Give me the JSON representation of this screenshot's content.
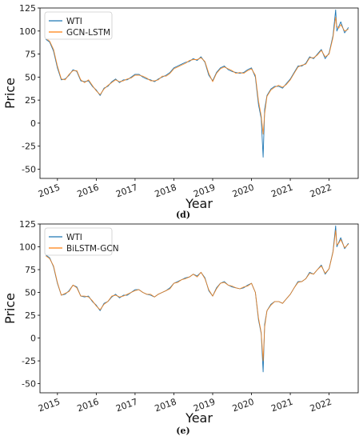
{
  "chart_data": [
    {
      "type": "line",
      "caption": "(d)",
      "xlabel": "Year",
      "ylabel": "Price",
      "ylim": [
        -60,
        125
      ],
      "xlim": [
        2014.55,
        2022.75
      ],
      "y_ticks": [
        125,
        100,
        75,
        50,
        25,
        0,
        -25,
        -50
      ],
      "x_ticks": [
        "2015",
        "2016",
        "2017",
        "2018",
        "2019",
        "2020",
        "2021",
        "2022"
      ],
      "legend_position": "top-left",
      "grid": false,
      "series": [
        {
          "name": "WTI",
          "color": "#1f77b4"
        },
        {
          "name": "GCN-LSTM",
          "color": "#ff7f0e"
        }
      ],
      "x": [
        2014.7,
        2014.8,
        2014.9,
        2015.0,
        2015.1,
        2015.2,
        2015.3,
        2015.4,
        2015.5,
        2015.6,
        2015.7,
        2015.8,
        2015.9,
        2016.0,
        2016.1,
        2016.2,
        2016.3,
        2016.4,
        2016.5,
        2016.6,
        2016.7,
        2016.8,
        2016.9,
        2017.0,
        2017.1,
        2017.2,
        2017.3,
        2017.4,
        2017.5,
        2017.6,
        2017.7,
        2017.8,
        2017.9,
        2018.0,
        2018.1,
        2018.2,
        2018.3,
        2018.4,
        2018.5,
        2018.6,
        2018.7,
        2018.8,
        2018.9,
        2019.0,
        2019.1,
        2019.2,
        2019.3,
        2019.4,
        2019.5,
        2019.6,
        2019.7,
        2019.8,
        2019.9,
        2020.0,
        2020.1,
        2020.18,
        2020.25,
        2020.3,
        2020.34,
        2020.4,
        2020.5,
        2020.6,
        2020.7,
        2020.8,
        2020.9,
        2021.0,
        2021.1,
        2021.2,
        2021.3,
        2021.4,
        2021.5,
        2021.6,
        2021.7,
        2021.8,
        2021.9,
        2022.0,
        2022.1,
        2022.17,
        2022.2,
        2022.25,
        2022.3,
        2022.4,
        2022.5
      ],
      "wti": [
        91,
        88,
        78,
        60,
        47,
        48,
        52,
        58,
        56,
        46,
        45,
        46,
        40,
        36,
        30,
        38,
        40,
        45,
        48,
        44,
        47,
        47,
        50,
        53,
        53,
        50,
        48,
        47,
        45,
        48,
        50,
        52,
        55,
        60,
        62,
        64,
        66,
        67,
        70,
        68,
        72,
        66,
        52,
        46,
        55,
        60,
        62,
        58,
        56,
        55,
        54,
        55,
        58,
        60,
        50,
        20,
        5,
        -37,
        15,
        30,
        37,
        40,
        40,
        38,
        43,
        48,
        55,
        62,
        62,
        65,
        72,
        70,
        75,
        80,
        70,
        76,
        95,
        123,
        100,
        105,
        110,
        98,
        104
      ],
      "pred": [
        92,
        89,
        80,
        62,
        48,
        47,
        53,
        57,
        57,
        47,
        44,
        47,
        41,
        35,
        31,
        37,
        41,
        44,
        47,
        45,
        46,
        48,
        49,
        52,
        52,
        51,
        49,
        46,
        46,
        47,
        51,
        51,
        54,
        59,
        61,
        63,
        65,
        68,
        69,
        69,
        71,
        67,
        54,
        45,
        54,
        59,
        61,
        59,
        57,
        54,
        55,
        54,
        57,
        59,
        52,
        24,
        8,
        -12,
        10,
        29,
        36,
        39,
        41,
        39,
        42,
        47,
        54,
        61,
        63,
        64,
        71,
        71,
        74,
        79,
        72,
        75,
        93,
        115,
        105,
        103,
        107,
        100,
        102
      ]
    },
    {
      "type": "line",
      "caption": "(e)",
      "xlabel": "Year",
      "ylabel": "Price",
      "ylim": [
        -60,
        125
      ],
      "xlim": [
        2014.55,
        2022.75
      ],
      "y_ticks": [
        125,
        100,
        75,
        50,
        25,
        0,
        -25,
        -50
      ],
      "x_ticks": [
        "2015",
        "2016",
        "2017",
        "2018",
        "2019",
        "2020",
        "2021",
        "2022"
      ],
      "legend_position": "top-left",
      "grid": false,
      "series": [
        {
          "name": "WTI",
          "color": "#1f77b4"
        },
        {
          "name": "BiLSTM-GCN",
          "color": "#ff7f0e"
        }
      ],
      "x": [
        2014.7,
        2014.8,
        2014.9,
        2015.0,
        2015.1,
        2015.2,
        2015.3,
        2015.4,
        2015.5,
        2015.6,
        2015.7,
        2015.8,
        2015.9,
        2016.0,
        2016.1,
        2016.2,
        2016.3,
        2016.4,
        2016.5,
        2016.6,
        2016.7,
        2016.8,
        2016.9,
        2017.0,
        2017.1,
        2017.2,
        2017.3,
        2017.4,
        2017.5,
        2017.6,
        2017.7,
        2017.8,
        2017.9,
        2018.0,
        2018.1,
        2018.2,
        2018.3,
        2018.4,
        2018.5,
        2018.6,
        2018.7,
        2018.8,
        2018.9,
        2019.0,
        2019.1,
        2019.2,
        2019.3,
        2019.4,
        2019.5,
        2019.6,
        2019.7,
        2019.8,
        2019.9,
        2020.0,
        2020.1,
        2020.18,
        2020.25,
        2020.3,
        2020.34,
        2020.4,
        2020.5,
        2020.6,
        2020.7,
        2020.8,
        2020.9,
        2021.0,
        2021.1,
        2021.2,
        2021.3,
        2021.4,
        2021.5,
        2021.6,
        2021.7,
        2021.8,
        2021.9,
        2022.0,
        2022.1,
        2022.17,
        2022.2,
        2022.25,
        2022.3,
        2022.4,
        2022.5
      ],
      "wti": [
        91,
        88,
        78,
        60,
        47,
        48,
        52,
        58,
        56,
        46,
        45,
        46,
        40,
        36,
        30,
        38,
        40,
        45,
        48,
        44,
        47,
        47,
        50,
        53,
        53,
        50,
        48,
        47,
        45,
        48,
        50,
        52,
        55,
        60,
        62,
        64,
        66,
        67,
        70,
        68,
        72,
        66,
        52,
        46,
        55,
        60,
        62,
        58,
        56,
        55,
        54,
        55,
        58,
        60,
        50,
        20,
        5,
        -37,
        15,
        30,
        37,
        40,
        40,
        38,
        43,
        48,
        55,
        62,
        62,
        65,
        72,
        70,
        75,
        80,
        70,
        76,
        95,
        123,
        100,
        105,
        110,
        98,
        104
      ],
      "pred": [
        90,
        87,
        79,
        61,
        47,
        49,
        51,
        58,
        55,
        46,
        46,
        45,
        41,
        35,
        31,
        37,
        40,
        46,
        47,
        45,
        46,
        48,
        50,
        52,
        53,
        50,
        48,
        48,
        45,
        48,
        50,
        52,
        54,
        60,
        61,
        64,
        65,
        67,
        70,
        67,
        72,
        65,
        53,
        46,
        54,
        60,
        61,
        58,
        57,
        55,
        54,
        56,
        57,
        60,
        50,
        22,
        6,
        -25,
        12,
        30,
        36,
        40,
        40,
        38,
        43,
        48,
        55,
        61,
        62,
        65,
        71,
        70,
        75,
        79,
        71,
        76,
        94,
        118,
        102,
        104,
        108,
        99,
        103
      ]
    }
  ]
}
